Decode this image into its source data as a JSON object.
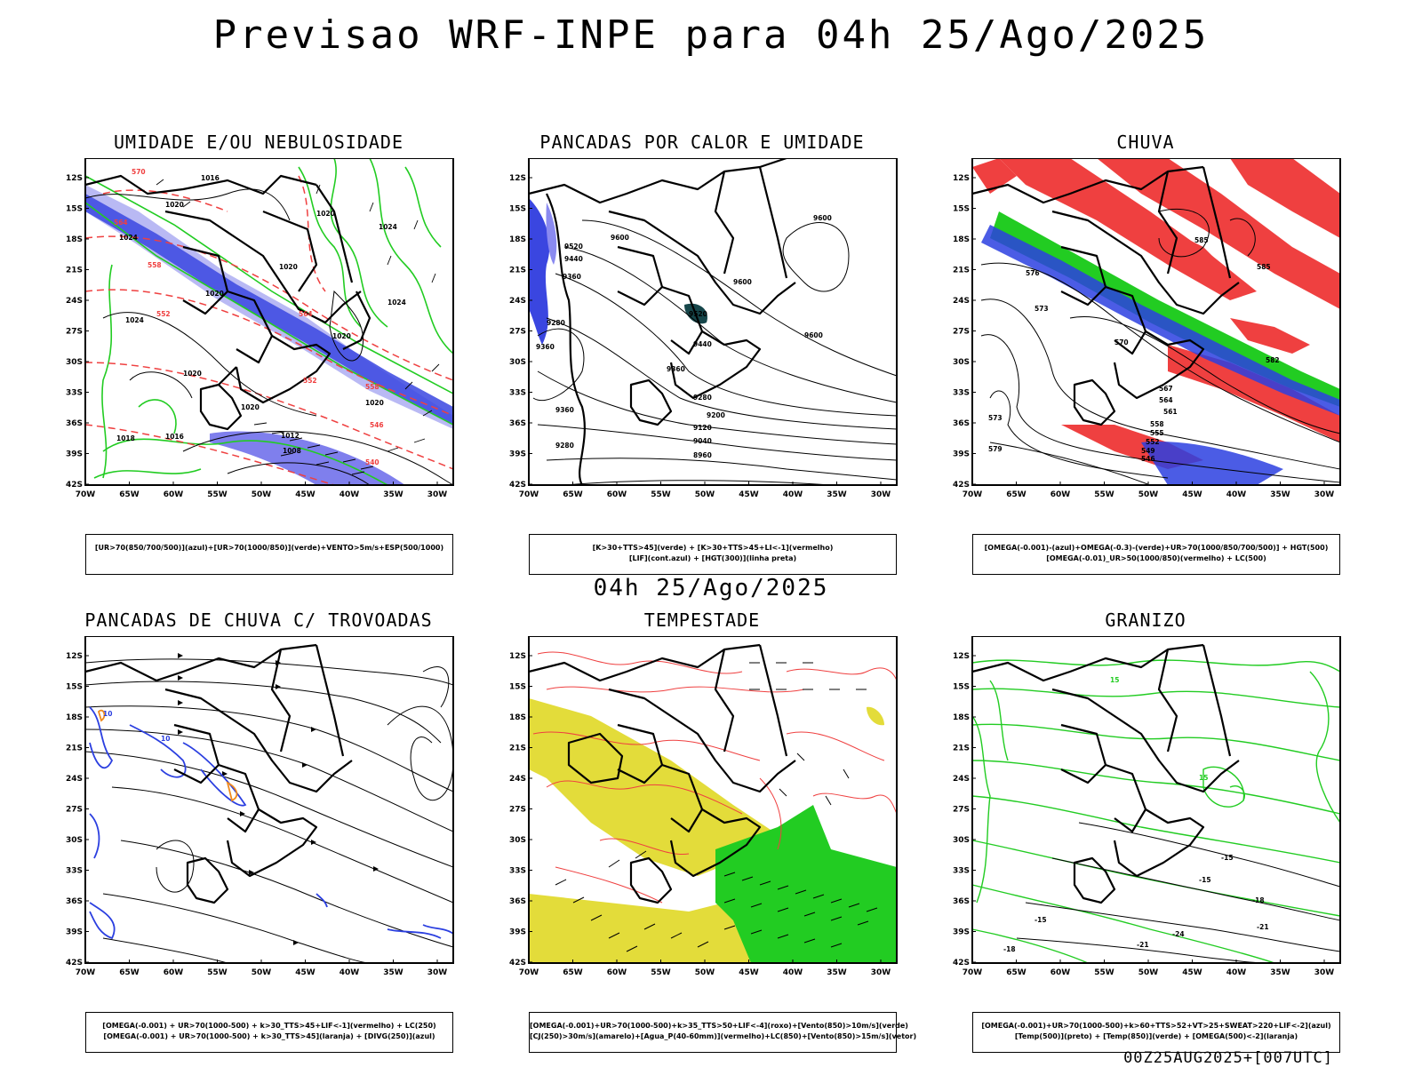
{
  "header": {
    "title": "Previsao WRF-INPE  para 04h 25/Ago/2025"
  },
  "mid_date": "04h 25/Ago/2025",
  "footer": "00Z25AUG2025+[007UTC]",
  "axes": {
    "lat_labels": [
      "12S",
      "15S",
      "18S",
      "21S",
      "24S",
      "27S",
      "30S",
      "33S",
      "36S",
      "39S",
      "42S"
    ],
    "lon_labels": [
      "70W",
      "65W",
      "60W",
      "55W",
      "50W",
      "45W",
      "40W",
      "35W",
      "30W"
    ]
  },
  "colors": {
    "blue": "#2b3fe0",
    "light_blue": "#a9a9f2",
    "green": "#22cc22",
    "red": "#ef4040",
    "yellow": "#e3dc3a",
    "orange": "#f08a1c",
    "dark_teal": "#16464a"
  },
  "panels": [
    {
      "id": "umidade",
      "title": "UMIDADE E/OU NEBULOSIDADE",
      "legend": [
        "[UR>70(850/700/500)](azul)+[UR>70(1000/850)](verde)+VENTO>5m/s+ESP(500/1000)"
      ],
      "labels": [
        "1016",
        "1020",
        "1020",
        "1024",
        "1020",
        "1020",
        "1024",
        "1020",
        "1024",
        "1020",
        "1016",
        "1024",
        "1020",
        "1012",
        "1008",
        "1018",
        "1020",
        "570",
        "564",
        "558",
        "552",
        "546",
        "540",
        "564",
        "552",
        "558"
      ]
    },
    {
      "id": "pancadas_calor",
      "title": "PANCADAS POR CALOR E UMIDADE",
      "legend": [
        "[K>30+TTS>45](verde) + [K>30+TTS>45+LI<-1](vermelho)",
        "[LIF](cont.azul) + [HGT(300)](linha preta)"
      ],
      "labels": [
        "9600",
        "9600",
        "9520",
        "9440",
        "9360",
        "9600",
        "9520",
        "9440",
        "9360",
        "9280",
        "9360",
        "9280",
        "9360",
        "9200",
        "9280",
        "9120",
        "9040",
        "8960",
        "9600"
      ]
    },
    {
      "id": "chuva",
      "title": "CHUVA",
      "legend": [
        "[OMEGA(-0.001)-(azul)+OMEGA(-0.3)-(verde)+UR>70(1000/850/700/500)] + HGT(500)",
        "[OMEGA(-0.01)_UR>50(1000/850)(vermelho) + LC(500)"
      ],
      "labels": [
        "585",
        "585",
        "576",
        "573",
        "570",
        "567",
        "564",
        "561",
        "558",
        "555",
        "552",
        "549",
        "546",
        "579",
        "582",
        "573"
      ]
    },
    {
      "id": "pancadas_trovoadas",
      "title": "PANCADAS DE CHUVA C/ TROVOADAS",
      "legend": [
        "[OMEGA(-0.001) + UR>70(1000-500) + k>30_TTS>45+LIF<-1](vermelho) + LC(250)",
        "[OMEGA(-0.001) + UR>70(1000-500) + k>30_TTS>45](laranja) + [DIVG(250)](azul)"
      ],
      "labels": [
        "10",
        "10"
      ]
    },
    {
      "id": "tempestade",
      "title": "TEMPESTADE",
      "legend": [
        "[OMEGA(-0.001)+UR>70(1000-500)+k>35_TTS>50+LIF<-4](roxo)+[Vento(850)>10m/s](verde)",
        "[CJ(250)>30m/s](amarelo)+[Agua_P(40-60mm)](vermelho)+LC(850)+[Vento(850)>15m/s](vetor)"
      ],
      "labels": []
    },
    {
      "id": "granizo",
      "title": "GRANIZO",
      "legend": [
        "[OMEGA(-0.001)+UR>70(1000-500)+k>60+TTS>52+VT>25+SWEAT>220+LIF<-2](azul)",
        "[Temp(500)](preto) + [Temp(850)](verde) + [OMEGA(500)<-2](laranja)"
      ],
      "labels": [
        "15",
        "15",
        "-15",
        "-15",
        "-18",
        "-18",
        "-15",
        "-21",
        "-24",
        "-21"
      ]
    }
  ]
}
